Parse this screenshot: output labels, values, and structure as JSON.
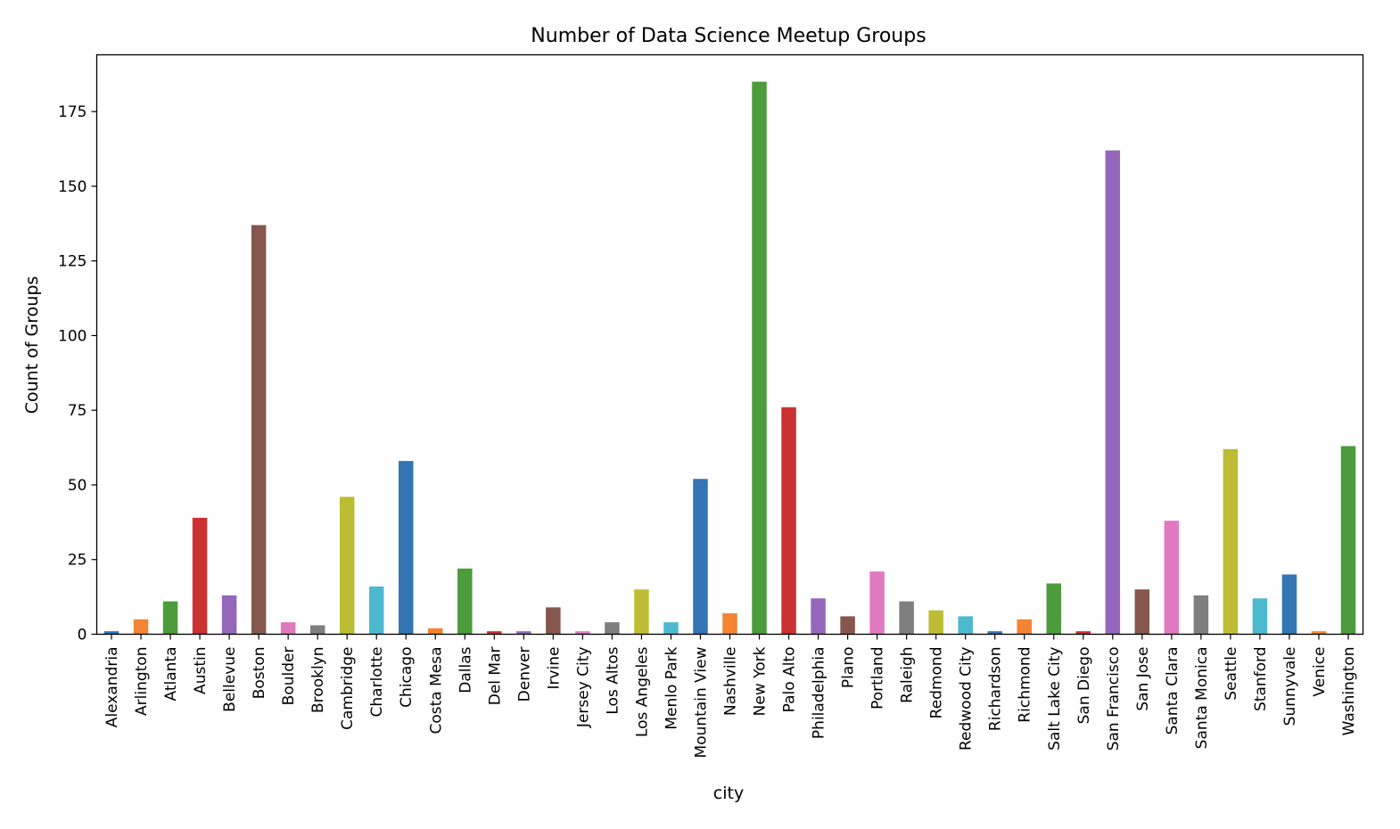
{
  "chart_data": {
    "type": "bar",
    "title": "Number of Data Science Meetup Groups",
    "xlabel": "city",
    "ylabel": "Count of Groups",
    "ylim": [
      0,
      194
    ],
    "yticks": [
      0,
      25,
      50,
      75,
      100,
      125,
      150,
      175
    ],
    "grid": false,
    "legend": "none",
    "categories": [
      "Alexandria",
      "Arlington",
      "Atlanta",
      "Austin",
      "Bellevue",
      "Boston",
      "Boulder",
      "Brooklyn",
      "Cambridge",
      "Charlotte",
      "Chicago",
      "Costa Mesa",
      "Dallas",
      "Del Mar",
      "Denver",
      "Irvine",
      "Jersey City",
      "Los Altos",
      "Los Angeles",
      "Menlo Park",
      "Mountain View",
      "Nashville",
      "New York",
      "Palo Alto",
      "Philadelphia",
      "Plano",
      "Portland",
      "Raleigh",
      "Redmond",
      "Redwood City",
      "Richardson",
      "Richmond",
      "Salt Lake City",
      "San Diego",
      "San Francisco",
      "San Jose",
      "Santa Clara",
      "Santa Monica",
      "Seattle",
      "Stanford",
      "Sunnyvale",
      "Venice",
      "Washington"
    ],
    "values": [
      1,
      5,
      11,
      39,
      13,
      137,
      4,
      3,
      46,
      16,
      58,
      2,
      22,
      1,
      1,
      9,
      1,
      4,
      15,
      4,
      52,
      7,
      185,
      76,
      12,
      6,
      21,
      11,
      8,
      6,
      1,
      5,
      17,
      1,
      162,
      15,
      38,
      13,
      62,
      12,
      20,
      1,
      63
    ],
    "colors": [
      "#3274b4",
      "#f28433",
      "#4c9c3c",
      "#cc3131",
      "#9467bd",
      "#85574c",
      "#e179c1",
      "#7f7f7f",
      "#bcbd34",
      "#4db9cf"
    ]
  }
}
